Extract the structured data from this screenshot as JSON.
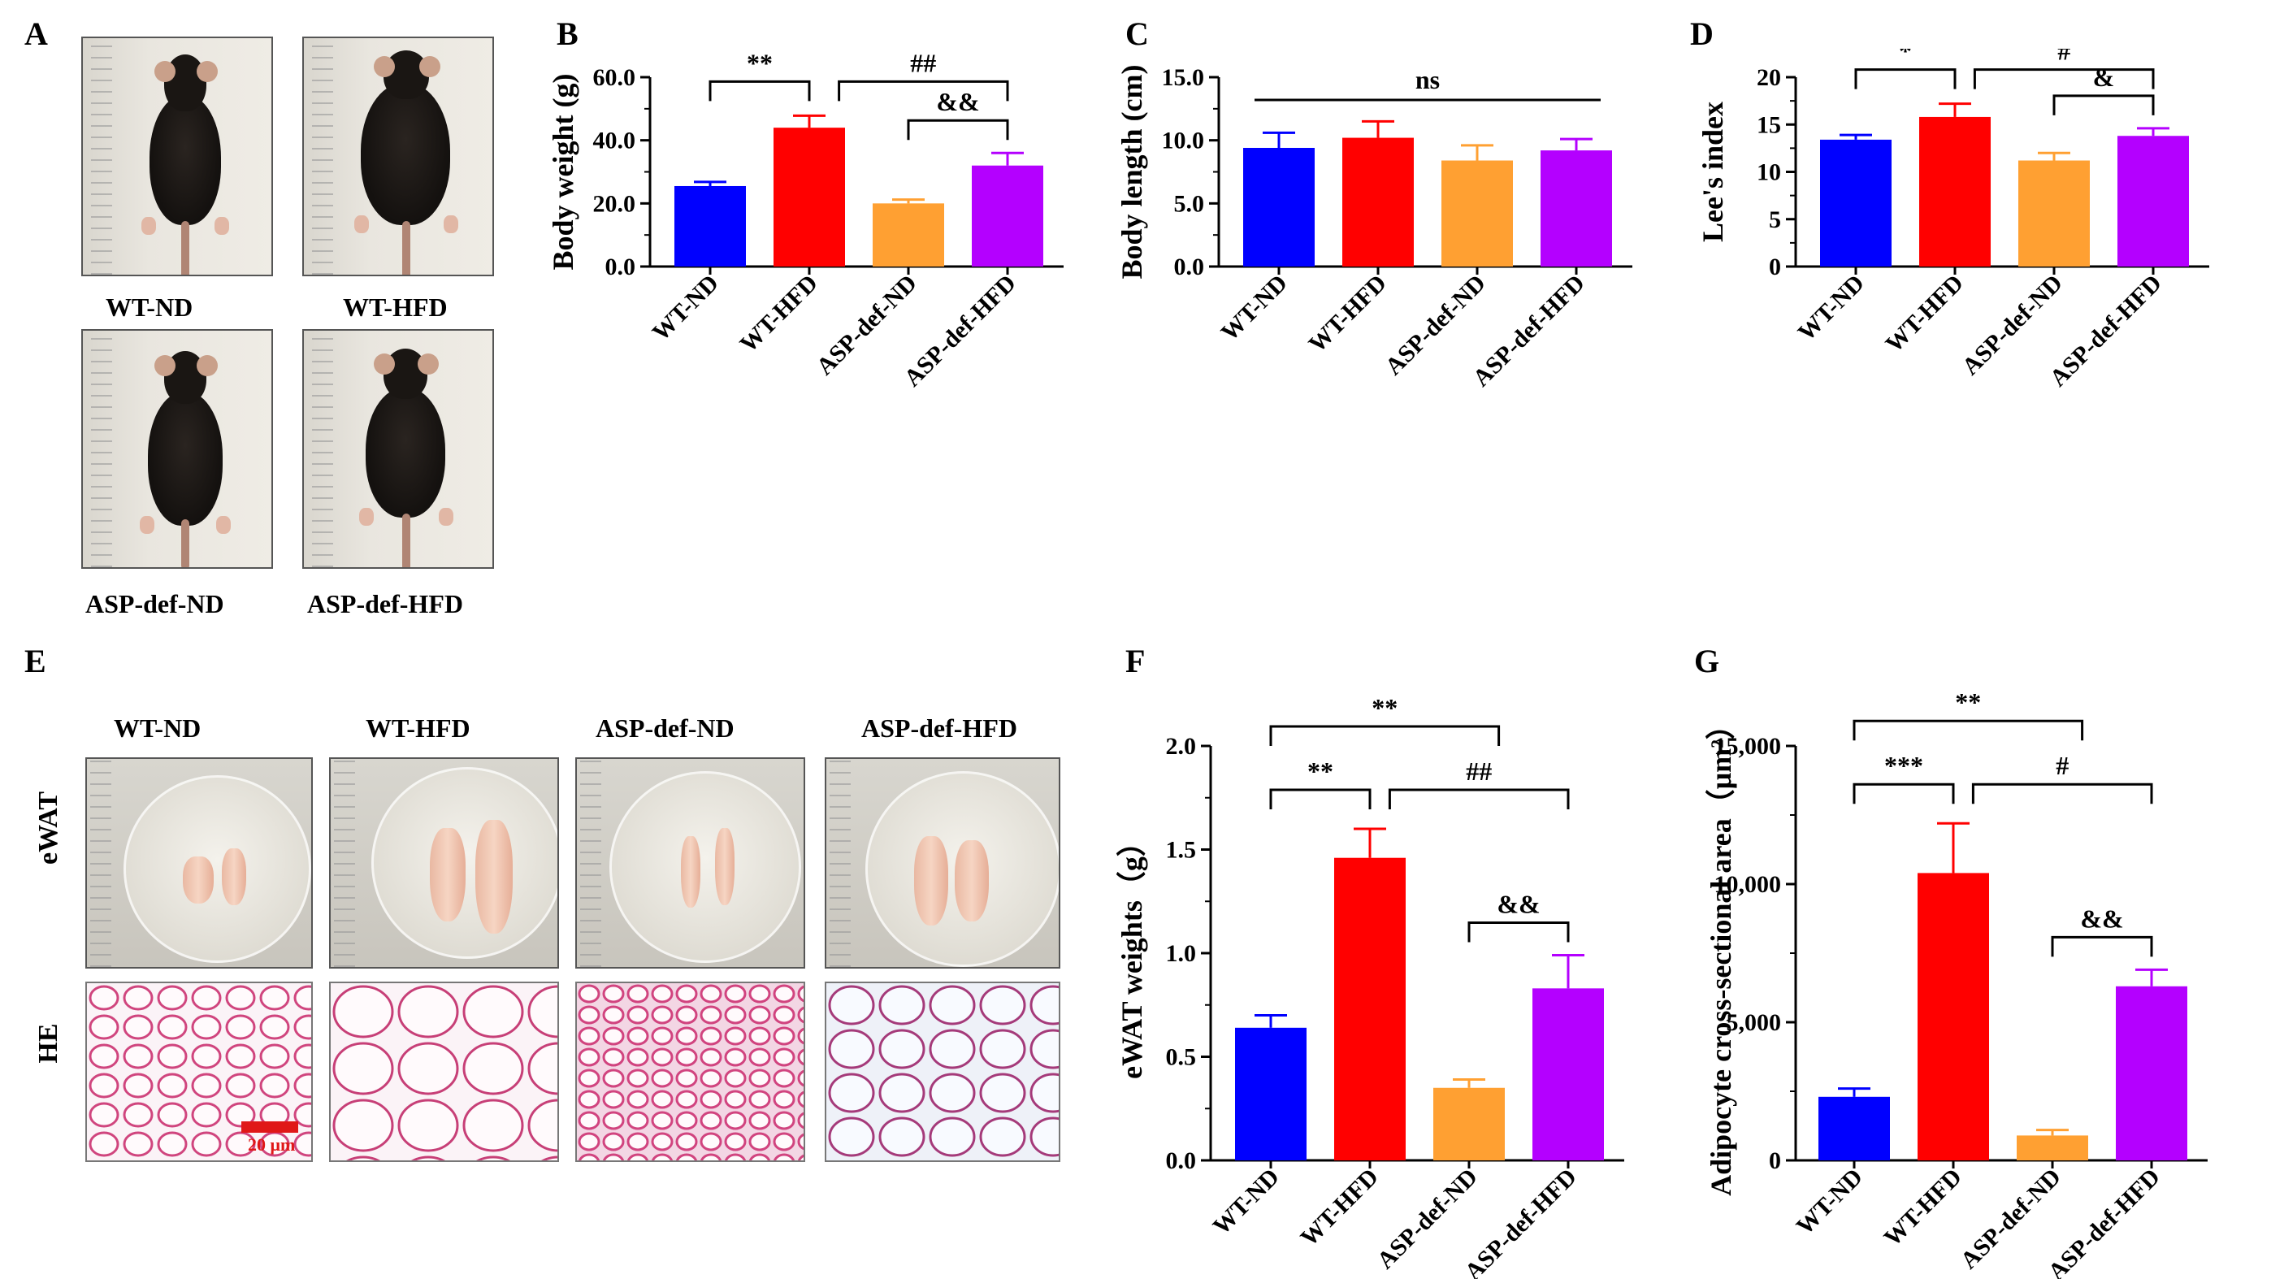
{
  "panel_letters": {
    "A": "A",
    "B": "B",
    "C": "C",
    "D": "D",
    "E": "E",
    "F": "F",
    "G": "G"
  },
  "panel_a": {
    "captions": [
      "WT-ND",
      "WT-HFD",
      "ASP-def-ND",
      "ASP-def-HFD"
    ]
  },
  "panel_e": {
    "columns": [
      "WT-ND",
      "WT-HFD",
      "ASP-def-ND",
      "ASP-def-HFD"
    ],
    "row_labels": [
      "eWAT",
      "HE"
    ],
    "scale_bar": "20 μm"
  },
  "colors": {
    "WT-ND": "#0000ff",
    "WT-HFD": "#ff0000",
    "ASP-def-ND": "#ffa032",
    "ASP-def-HFD": "#b400ff"
  },
  "chart_data": [
    {
      "id": "B",
      "type": "bar",
      "categories": [
        "WT-ND",
        "WT-HFD",
        "ASP-def-ND",
        "ASP-def-HFD"
      ],
      "values": [
        25.5,
        44.0,
        20.0,
        32.0
      ],
      "errors": [
        1.3,
        3.8,
        1.2,
        4.0
      ],
      "ylabel": "Body weight (g)",
      "ylim": [
        0,
        60
      ],
      "yticks": [
        "0.0",
        "20.0",
        "40.0",
        "60.0"
      ],
      "annotations": [
        {
          "from": 0,
          "to": 1,
          "label": "**",
          "level": 2
        },
        {
          "from": 0,
          "to": 2.6,
          "label": "*",
          "level": 3
        },
        {
          "from": 1.3,
          "to": 3,
          "label": "##",
          "level": 2
        },
        {
          "from": 2,
          "to": 3,
          "label": "&&",
          "level": 1
        }
      ]
    },
    {
      "id": "C",
      "type": "bar",
      "categories": [
        "WT-ND",
        "WT-HFD",
        "ASP-def-ND",
        "ASP-def-HFD"
      ],
      "values": [
        9.4,
        10.2,
        8.4,
        9.2
      ],
      "errors": [
        1.2,
        1.3,
        1.2,
        0.9
      ],
      "ylabel": "Body length (cm)",
      "ylim": [
        0,
        15
      ],
      "yticks": [
        "0.0",
        "5.0",
        "10.0",
        "15.0"
      ],
      "annotations": [
        {
          "from": 0,
          "to": 3.5,
          "label": "ns",
          "flat": true
        }
      ]
    },
    {
      "id": "D",
      "type": "bar",
      "categories": [
        "WT-ND",
        "WT-HFD",
        "ASP-def-ND",
        "ASP-def-HFD"
      ],
      "values": [
        13.4,
        15.8,
        11.2,
        13.8
      ],
      "errors": [
        0.5,
        1.4,
        0.8,
        0.8
      ],
      "ylabel": "Lee's index",
      "ylim": [
        0,
        20
      ],
      "yticks": [
        "0",
        "5",
        "10",
        "15",
        "20"
      ],
      "annotations": [
        {
          "from": 0,
          "to": 1,
          "label": "*",
          "level": 2
        },
        {
          "from": 0,
          "to": 2.3,
          "label": "*",
          "level": 3
        },
        {
          "from": 1.2,
          "to": 3,
          "label": "#",
          "level": 2
        },
        {
          "from": 2,
          "to": 3,
          "label": "&",
          "level": 1
        }
      ]
    },
    {
      "id": "F",
      "type": "bar",
      "categories": [
        "WT-ND",
        "WT-HFD",
        "ASP-def-ND",
        "ASP-def-HFD"
      ],
      "values": [
        0.64,
        1.46,
        0.35,
        0.83
      ],
      "errors": [
        0.06,
        0.14,
        0.04,
        0.16
      ],
      "ylabel": "eWAT weights（g）",
      "ylim": [
        0,
        2
      ],
      "yticks": [
        "0.0",
        "0.5",
        "1.0",
        "1.5",
        "2.0"
      ],
      "annotations": [
        {
          "from": 0,
          "to": 1,
          "label": "**",
          "level": 2
        },
        {
          "from": 0,
          "to": 2.3,
          "label": "**",
          "level": 3
        },
        {
          "from": 1.2,
          "to": 3,
          "label": "##",
          "level": 2
        },
        {
          "from": 2,
          "to": 3,
          "label": "&&",
          "level": 1
        }
      ]
    },
    {
      "id": "G",
      "type": "bar",
      "categories": [
        "WT-ND",
        "WT-HFD",
        "ASP-def-ND",
        "ASP-def-HFD"
      ],
      "values": [
        2300,
        10400,
        900,
        6300
      ],
      "errors": [
        300,
        1800,
        200,
        600
      ],
      "ylabel": "Adipocyte cross-sectional area（μm²）",
      "ylim": [
        0,
        15000
      ],
      "yticks": [
        "0",
        "5,000",
        "10,000",
        "15,000"
      ],
      "annotations": [
        {
          "from": 0,
          "to": 1,
          "label": "***",
          "level": 2
        },
        {
          "from": 0,
          "to": 2.3,
          "label": "**",
          "level": 3
        },
        {
          "from": 1.2,
          "to": 3,
          "label": "#",
          "level": 2
        },
        {
          "from": 2,
          "to": 3,
          "label": "&&",
          "level": 1
        }
      ]
    }
  ]
}
